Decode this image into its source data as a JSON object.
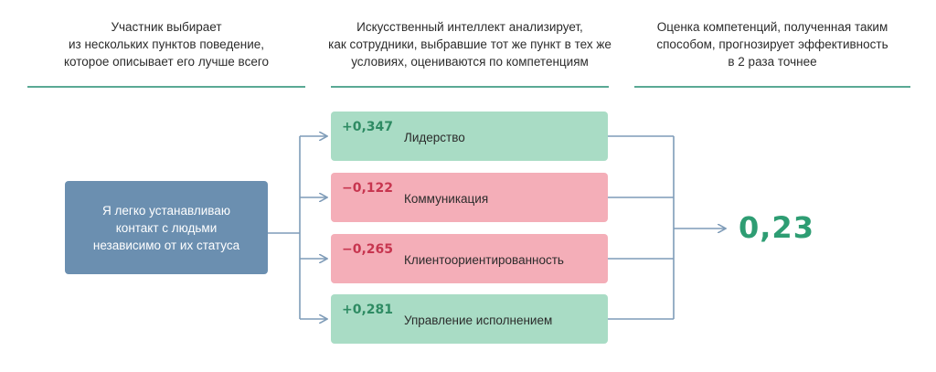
{
  "columns": [
    {
      "lines": [
        "Участник выбирает",
        "из нескольких пунктов поведение,",
        "которое описывает его лучше всего"
      ]
    },
    {
      "lines": [
        "Искусственный интеллект анализирует,",
        "как сотрудники, выбравшие тот же пункт в тех же",
        "условиях, оцениваются по компетенциям"
      ]
    },
    {
      "lines": [
        "Оценка компетенций, полученная таким",
        "способом, прогнозирует эффективность",
        "в 2 раза точнее"
      ]
    }
  ],
  "source": {
    "lines": [
      "Я легко устанавливаю",
      "контакт с людьми",
      "независимо от их статуса"
    ]
  },
  "competencies": [
    {
      "value": "+0,347",
      "name": "Лидерство",
      "sign": "positive",
      "color": "#a9dcc5"
    },
    {
      "value": "−0,122",
      "name": "Коммуникация",
      "sign": "negative",
      "color": "#f4aeb8"
    },
    {
      "value": "−0,265",
      "name": "Клиентоориентированность",
      "sign": "negative",
      "color": "#f4aeb8"
    },
    {
      "value": "+0,281",
      "name": "Управление исполнением",
      "sign": "positive",
      "color": "#a9dcc5"
    }
  ],
  "result": {
    "value": "0,23",
    "color": "#2e9d73"
  },
  "colors": {
    "accent_rule": "#5aa994",
    "source_box": "#6b8fb0",
    "connector": "#7f9cb8"
  }
}
